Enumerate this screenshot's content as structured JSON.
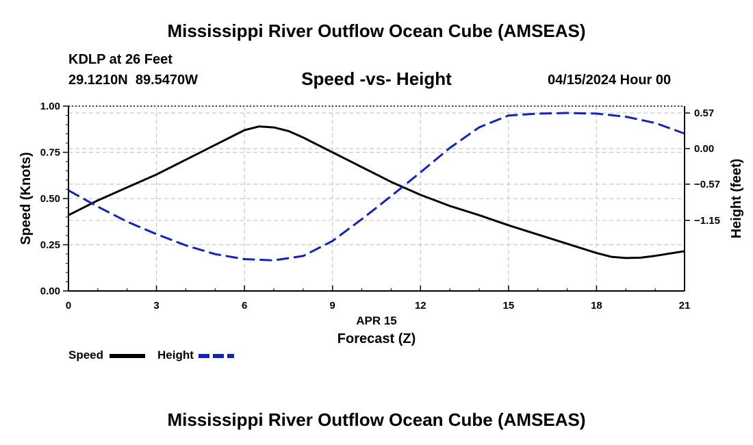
{
  "header": {
    "title": "Mississippi River Outflow Ocean Cube (AMSEAS)",
    "station": "KDLP at 26 Feet",
    "coords": "29.1210N  89.5470W",
    "subtitle": "Speed -vs- Height",
    "datetime": "04/15/2024 Hour 00"
  },
  "footer": {
    "title": "Mississippi River Outflow Ocean Cube (AMSEAS)"
  },
  "legend": {
    "speed": "Speed",
    "height": "Height"
  },
  "colors": {
    "speed": "#000000",
    "height": "#1020d0",
    "grid": "#c8c8c8"
  },
  "chart_data": {
    "type": "line",
    "title": "Speed -vs- Height",
    "xlabel": "Forecast (Z)",
    "xlabel_date": "APR 15",
    "ylabel": "Speed (Knots)",
    "ylabel_right": "Height (feet)",
    "xlim": [
      0,
      21
    ],
    "ylim": [
      0,
      1
    ],
    "ylim_right": [
      -2.28,
      0.68
    ],
    "x_ticks": [
      0,
      3,
      6,
      9,
      12,
      15,
      18,
      21
    ],
    "y_ticks": [
      0,
      0.25,
      0.5,
      0.75,
      1.0
    ],
    "y_tick_labels": [
      "0.00",
      "0.25",
      "0.50",
      "0.75",
      "1.00"
    ],
    "y_right_ticks": [
      0.57,
      0.0,
      -0.57,
      -1.15
    ],
    "y_right_tick_labels": [
      "0.57",
      "0.00",
      "−0.57",
      "−1.15"
    ],
    "grid": true,
    "legend_position": "bottom-left",
    "series": [
      {
        "name": "Speed",
        "axis": "left",
        "style": "solid",
        "x": [
          0,
          1,
          2,
          3,
          4,
          5,
          6,
          6.5,
          7,
          7.5,
          8,
          9,
          10,
          11,
          12,
          13,
          14,
          15,
          16,
          17,
          18,
          18.5,
          19,
          19.5,
          20,
          21
        ],
        "values": [
          0.41,
          0.49,
          0.56,
          0.63,
          0.71,
          0.79,
          0.87,
          0.89,
          0.885,
          0.865,
          0.83,
          0.75,
          0.67,
          0.59,
          0.52,
          0.46,
          0.41,
          0.355,
          0.305,
          0.255,
          0.205,
          0.185,
          0.178,
          0.18,
          0.19,
          0.215
        ]
      },
      {
        "name": "Height",
        "axis": "right",
        "style": "dashed",
        "x": [
          0,
          1,
          2,
          3,
          4,
          5,
          6,
          7,
          8,
          9,
          10,
          11,
          12,
          13,
          14,
          15,
          16,
          17,
          18,
          19,
          20,
          21
        ],
        "values": [
          -0.67,
          -0.93,
          -1.17,
          -1.37,
          -1.55,
          -1.69,
          -1.77,
          -1.79,
          -1.72,
          -1.48,
          -1.13,
          -0.76,
          -0.38,
          0.01,
          0.34,
          0.53,
          0.56,
          0.57,
          0.56,
          0.51,
          0.41,
          0.24
        ]
      }
    ]
  }
}
